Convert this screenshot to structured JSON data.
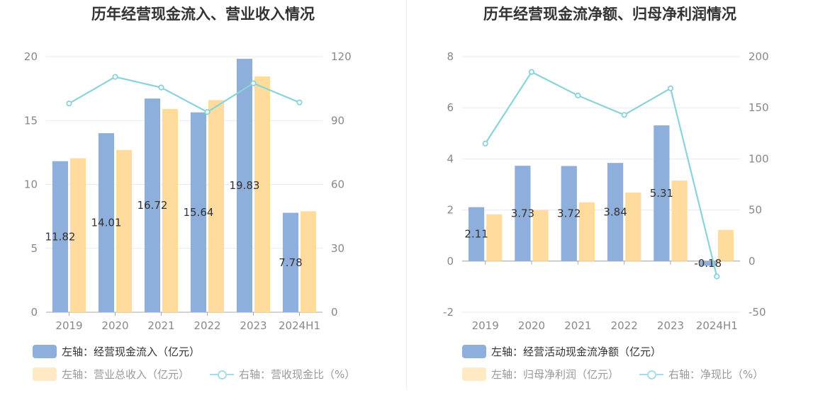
{
  "chart_data": [
    {
      "type": "bar",
      "title": "历年经营现金流入、营业收入情况",
      "categories": [
        "2019",
        "2020",
        "2021",
        "2022",
        "2023",
        "2024H1"
      ],
      "left_axis": {
        "ylim": [
          0,
          20
        ],
        "ticks": [
          "0",
          "5",
          "10",
          "15",
          "20"
        ]
      },
      "right_axis": {
        "ylim": [
          0,
          120
        ],
        "ticks": [
          "0",
          "30",
          "60",
          "90",
          "120"
        ]
      },
      "series": [
        {
          "name": "左轴：经营现金流入（亿元）",
          "type": "bar",
          "axis": "left",
          "color": "#8eaedb",
          "values": [
            11.82,
            14.01,
            16.72,
            15.64,
            19.83,
            7.78
          ],
          "labels": [
            "11.82",
            "14.01",
            "16.72",
            "15.64",
            "19.83",
            "7.78"
          ]
        },
        {
          "name": "左轴：营业总收入（亿元）",
          "type": "bar",
          "axis": "left",
          "color": "#ffdb9e",
          "values": [
            12.05,
            12.7,
            15.9,
            16.6,
            18.45,
            7.9
          ]
        },
        {
          "name": "右轴：营收现金比（%）",
          "type": "line",
          "axis": "right",
          "color": "#8ad3d9",
          "values": [
            98,
            110.5,
            105.5,
            94,
            107.5,
            98.5
          ]
        }
      ],
      "grid": true,
      "legend_position": "bottom-left"
    },
    {
      "type": "bar",
      "title": "历年经营现金流净额、归母净利润情况",
      "categories": [
        "2019",
        "2020",
        "2021",
        "2022",
        "2023",
        "2024H1"
      ],
      "left_axis": {
        "ylim": [
          -2,
          8
        ],
        "ticks": [
          "-2",
          "0",
          "2",
          "4",
          "6",
          "8"
        ]
      },
      "right_axis": {
        "ylim": [
          -50,
          200
        ],
        "ticks": [
          "-50",
          "0",
          "50",
          "100",
          "150",
          "200"
        ]
      },
      "series": [
        {
          "name": "左轴：经营活动现金流净额（亿元）",
          "type": "bar",
          "axis": "left",
          "color": "#8eaedb",
          "values": [
            2.11,
            3.73,
            3.72,
            3.84,
            5.31,
            -0.18
          ],
          "labels": [
            "2.11",
            "3.73",
            "3.72",
            "3.84",
            "5.31",
            "-0.18"
          ]
        },
        {
          "name": "左轴：归母净利润（亿元）",
          "type": "bar",
          "axis": "left",
          "color": "#ffdb9e",
          "values": [
            1.83,
            2.0,
            2.3,
            2.68,
            3.15,
            1.22
          ]
        },
        {
          "name": "右轴：净现比（%）",
          "type": "line",
          "axis": "right",
          "color": "#8ad3d9",
          "values": [
            115,
            185,
            162,
            143,
            169,
            -15
          ]
        }
      ],
      "grid": true,
      "legend_position": "bottom-left"
    }
  ]
}
